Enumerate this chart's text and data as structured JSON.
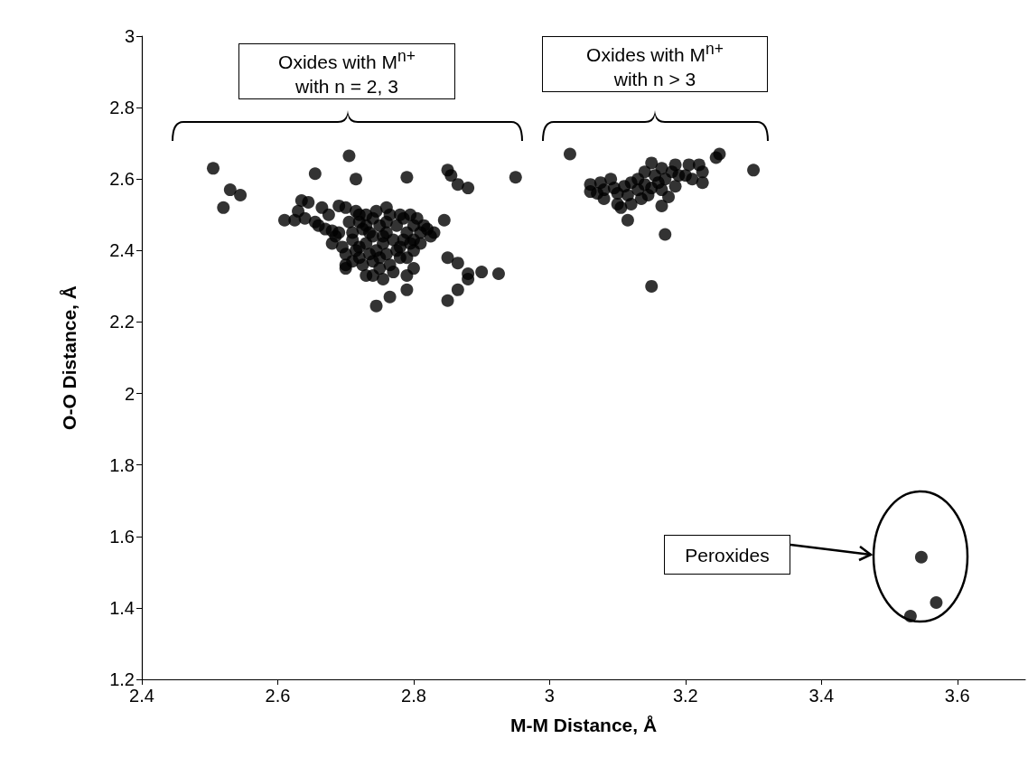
{
  "chart_data": {
    "type": "scatter",
    "xlabel": "M-M Distance, Å",
    "ylabel": "O-O Distance, Å",
    "xlim": [
      2.4,
      3.7
    ],
    "xticks": [
      2.4,
      2.6,
      2.8,
      3,
      3.2,
      3.4,
      3.6
    ],
    "ylim": [
      1.2,
      3
    ],
    "yticks": [
      1.2,
      1.4,
      1.6,
      1.8,
      2,
      2.2,
      2.4,
      2.6,
      2.8,
      3
    ],
    "grid": false,
    "marker": "circle",
    "color": "#000000",
    "x": [
      2.505,
      2.52,
      2.53,
      2.545,
      2.655,
      2.705,
      2.715,
      2.79,
      2.85,
      2.855,
      2.865,
      2.88,
      2.95,
      2.845,
      2.85,
      2.865,
      2.88,
      2.88,
      2.9,
      2.925,
      2.865,
      2.85,
      2.79,
      2.765,
      2.745,
      2.8,
      2.83,
      2.61,
      2.625,
      2.63,
      2.635,
      2.645,
      2.64,
      2.655,
      2.66,
      2.67,
      2.68,
      2.685,
      2.69,
      2.7,
      2.695,
      2.7,
      2.7,
      2.705,
      2.71,
      2.715,
      2.72,
      2.72,
      2.725,
      2.73,
      2.73,
      2.735,
      2.74,
      2.74,
      2.745,
      2.75,
      2.75,
      2.755,
      2.755,
      2.76,
      2.76,
      2.765,
      2.77,
      2.77,
      2.775,
      2.78,
      2.78,
      2.785,
      2.79,
      2.79,
      2.795,
      2.8,
      2.8,
      2.805,
      2.81,
      2.815,
      2.82,
      2.825,
      2.72,
      2.73,
      2.74,
      2.71,
      2.7,
      2.68,
      2.675,
      2.665,
      2.715,
      2.725,
      2.745,
      2.765,
      2.785,
      2.775,
      2.795,
      2.76,
      2.735,
      2.71,
      2.69,
      2.74,
      2.755,
      2.79,
      2.8,
      2.81,
      2.73,
      2.76,
      2.78,
      2.72,
      2.75,
      3.03,
      3.06,
      3.06,
      3.075,
      3.08,
      3.08,
      3.09,
      3.095,
      3.1,
      3.1,
      3.11,
      3.115,
      3.12,
      3.12,
      3.13,
      3.13,
      3.135,
      3.14,
      3.14,
      3.145,
      3.15,
      3.155,
      3.16,
      3.165,
      3.165,
      3.17,
      3.18,
      3.185,
      3.19,
      3.2,
      3.21,
      3.22,
      3.225,
      3.225,
      3.245,
      3.25,
      3.3,
      3.115,
      3.165,
      3.17,
      3.15,
      3.105,
      3.175,
      3.15,
      3.07,
      3.205,
      3.185,
      3.547,
      3.569,
      3.531
    ],
    "values": [
      2.63,
      2.52,
      2.57,
      2.555,
      2.615,
      2.665,
      2.6,
      2.605,
      2.625,
      2.61,
      2.585,
      2.575,
      2.605,
      2.485,
      2.38,
      2.365,
      2.335,
      2.32,
      2.34,
      2.335,
      2.29,
      2.26,
      2.29,
      2.27,
      2.245,
      2.35,
      2.45,
      2.485,
      2.485,
      2.51,
      2.54,
      2.535,
      2.49,
      2.48,
      2.47,
      2.46,
      2.455,
      2.44,
      2.525,
      2.52,
      2.41,
      2.36,
      2.35,
      2.48,
      2.43,
      2.4,
      2.38,
      2.5,
      2.46,
      2.42,
      2.33,
      2.39,
      2.44,
      2.37,
      2.51,
      2.47,
      2.35,
      2.42,
      2.32,
      2.45,
      2.39,
      2.5,
      2.43,
      2.34,
      2.47,
      2.41,
      2.38,
      2.49,
      2.45,
      2.33,
      2.5,
      2.47,
      2.43,
      2.49,
      2.45,
      2.47,
      2.46,
      2.44,
      2.48,
      2.47,
      2.49,
      2.45,
      2.39,
      2.42,
      2.5,
      2.52,
      2.51,
      2.36,
      2.4,
      2.36,
      2.43,
      2.4,
      2.42,
      2.48,
      2.45,
      2.37,
      2.45,
      2.33,
      2.44,
      2.38,
      2.4,
      2.42,
      2.5,
      2.52,
      2.5,
      2.41,
      2.38,
      2.67,
      2.585,
      2.565,
      2.59,
      2.57,
      2.545,
      2.6,
      2.575,
      2.56,
      2.53,
      2.58,
      2.555,
      2.59,
      2.53,
      2.6,
      2.57,
      2.545,
      2.62,
      2.585,
      2.555,
      2.645,
      2.61,
      2.59,
      2.63,
      2.57,
      2.6,
      2.62,
      2.58,
      2.61,
      2.61,
      2.6,
      2.64,
      2.62,
      2.59,
      2.66,
      2.67,
      2.625,
      2.485,
      2.525,
      2.445,
      2.3,
      2.52,
      2.55,
      2.575,
      2.56,
      2.64,
      2.64,
      1.542,
      1.415,
      1.377
    ],
    "annotations": [
      "Oxides with M$^{n+}$\nwith n = 2, 3",
      "Oxides with M$^{n+}$\nwith n > 3",
      "Peroxides"
    ]
  }
}
